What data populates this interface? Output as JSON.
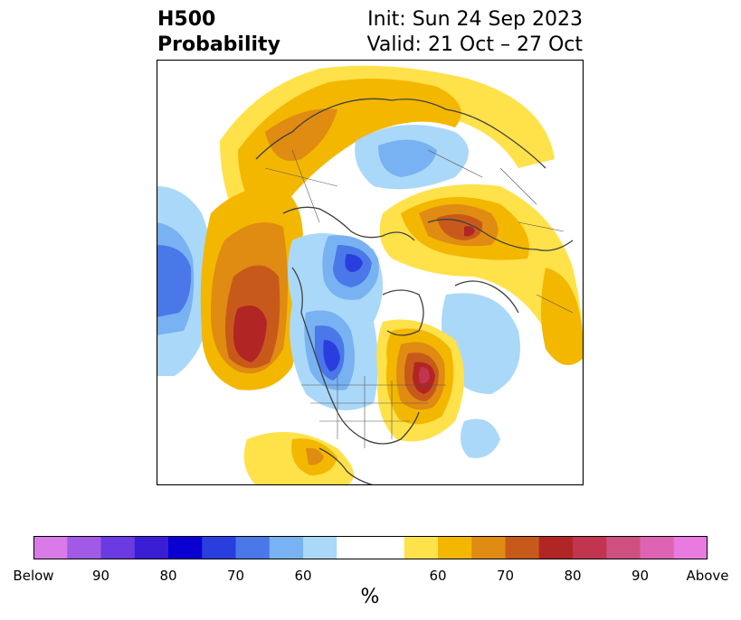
{
  "header": {
    "title_line1": "H500",
    "title_line2": "Probability",
    "init": "Init: Sun 24 Sep 2023",
    "valid": "Valid: 21 Oct – 27 Oct"
  },
  "colorbar": {
    "colors": [
      "#d97ae8",
      "#a05ae6",
      "#6b3ae0",
      "#3a1ed6",
      "#0a00d2",
      "#2a3ee0",
      "#4a78e8",
      "#78b2f2",
      "#aad8f8",
      "#ffffff",
      "#ffffff",
      "#ffe14a",
      "#f3b700",
      "#e08b12",
      "#c75a1a",
      "#b22525",
      "#c2354f",
      "#cf4f80",
      "#de64b3",
      "#e97ae0"
    ],
    "tick_labels": [
      "Below",
      "90",
      "80",
      "70",
      "60",
      "60",
      "70",
      "80",
      "90",
      "Above"
    ],
    "unit_label": "%"
  },
  "map": {
    "fill_colors": {
      "light_blue": "#aad8f8",
      "mid_blue": "#78b2f2",
      "blue": "#4a78e8",
      "deep_blue": "#2a3ee0",
      "yellow": "#ffe14a",
      "gold": "#f3b700",
      "orange": "#e08b12",
      "dark_orange": "#c75a1a",
      "red": "#b22525",
      "magenta_red": "#c2354f"
    }
  }
}
